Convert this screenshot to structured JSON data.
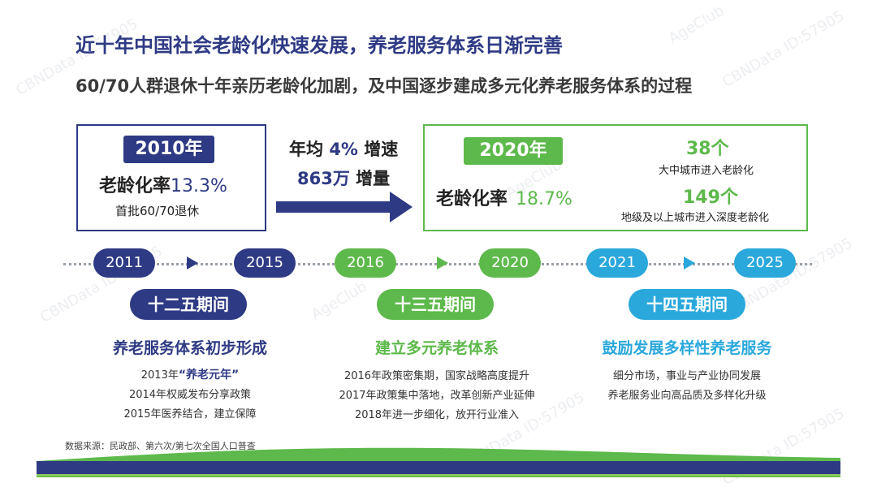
{
  "header": {
    "title": "近十年中国社会老龄化快速发展，养老服务体系日渐完善",
    "subtitle": "60/70人群退休十年亲历老龄化加剧，及中国逐步建成多元化养老服务体系的过程"
  },
  "box2010": {
    "year": "2010年",
    "rate_label": "老龄化率",
    "rate_value": "13.3%",
    "note": "首批60/70退休"
  },
  "growth": {
    "line1_prefix": "年均",
    "line1_value": "4%",
    "line1_suffix": "增速",
    "line2_value": "863万",
    "line2_suffix": "增量"
  },
  "box2020": {
    "year": "2020年",
    "rate_label": "老龄化率",
    "rate_value": "18.7%",
    "count1": "38个",
    "count1_label": "大中城市进入老龄化",
    "count2": "149个",
    "count2_label": "地级及以上城市进入深度老龄化"
  },
  "timeline": {
    "years": [
      "2011",
      "2015",
      "2016",
      "2020",
      "2021",
      "2025"
    ]
  },
  "phases": [
    {
      "period": "十二五期间",
      "title": "养老服务体系初步形成",
      "details_prefix": "2013年",
      "details_highlight": "“养老元年”",
      "details": [
        "2014年权威发布分享政策",
        "2015年医养结合，建立保障"
      ]
    },
    {
      "period": "十三五期间",
      "title": "建立多元养老体系",
      "details": [
        "2016年政策密集期，国家战略高度提升",
        "2017年政策集中落地，改革创新产业延伸",
        "2018年进一步细化，放开行业准入"
      ]
    },
    {
      "period": "十四五期间",
      "title": "鼓励发展多样性养老服务",
      "details": [
        "细分市场，事业与产业协同发展",
        "养老服务业向高品质及多样化升级"
      ]
    }
  ],
  "source": "数据来源：民政部、第六次/第七次全国人口普查",
  "watermark": "CBNData ID:57905",
  "watermark2": "AgeClub",
  "colors": {
    "navy": "#2e3a84",
    "green": "#5db94b",
    "cyan": "#2aa8dc"
  }
}
